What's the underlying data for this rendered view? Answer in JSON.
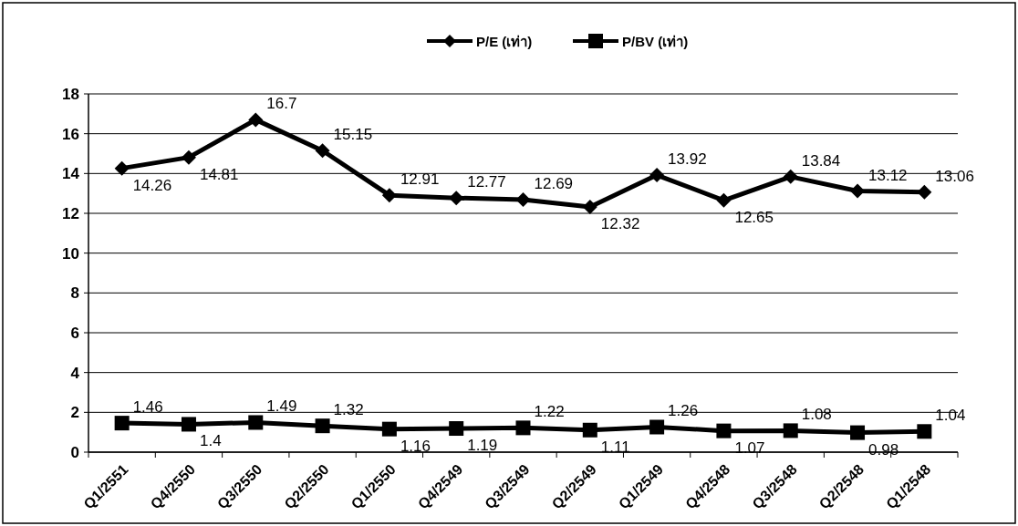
{
  "chart_data": {
    "type": "line",
    "categories": [
      "Q1/2551",
      "Q4/2550",
      "Q3/2550",
      "Q2/2550",
      "Q1/2550",
      "Q4/2549",
      "Q3/2549",
      "Q2/2549",
      "Q1/2549",
      "Q4/2548",
      "Q3/2548",
      "Q2/2548",
      "Q1/2548"
    ],
    "series": [
      {
        "name": "P/E (เท่า)",
        "color": "#000000",
        "marker": "diamond",
        "values": [
          14.26,
          14.81,
          16.7,
          15.15,
          12.91,
          12.77,
          12.69,
          12.32,
          13.92,
          12.65,
          13.84,
          13.12,
          13.06
        ]
      },
      {
        "name": "P/BV (เท่า)",
        "color": "#000000",
        "marker": "square",
        "values": [
          1.46,
          1.4,
          1.49,
          1.32,
          1.16,
          1.19,
          1.22,
          1.11,
          1.26,
          1.07,
          1.08,
          0.98,
          1.04
        ]
      }
    ],
    "ylim": [
      0,
      18
    ],
    "yticks": [
      0,
      2,
      4,
      6,
      8,
      10,
      12,
      14,
      16,
      18
    ],
    "grid": "y",
    "legend": "top",
    "data_labels": true
  }
}
